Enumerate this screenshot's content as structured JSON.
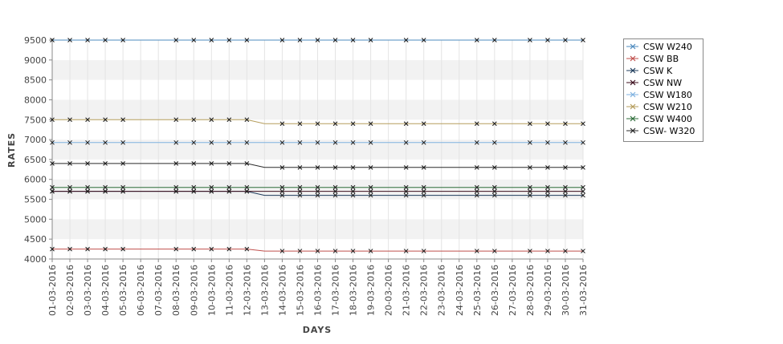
{
  "chart_data": {
    "type": "line",
    "title": "",
    "xlabel": "DAYS",
    "ylabel": "RATES",
    "ylim": [
      4000,
      9500
    ],
    "yticks": [
      4000,
      4500,
      5000,
      5500,
      6000,
      6500,
      7000,
      7500,
      8000,
      8500,
      9000,
      9500
    ],
    "grid": "horizontal alternating bands",
    "legend_position": "right",
    "categories": [
      "01-03-2016",
      "02-03-2016",
      "03-03-2016",
      "04-03-2016",
      "05-03-2016",
      "06-03-2016",
      "07-03-2016",
      "08-03-2016",
      "09-03-2016",
      "10-03-2016",
      "11-03-2016",
      "12-03-2016",
      "13-03-2016",
      "14-03-2016",
      "15-03-2016",
      "16-03-2016",
      "17-03-2016",
      "18-03-2016",
      "19-03-2016",
      "20-03-2016",
      "21-03-2016",
      "22-03-2016",
      "23-03-2016",
      "24-03-2016",
      "25-03-2016",
      "26-03-2016",
      "27-03-2016",
      "28-03-2016",
      "29-03-2016",
      "30-03-2016",
      "31-03-2016"
    ],
    "marker_dates": [
      "01-03-2016",
      "02-03-2016",
      "03-03-2016",
      "04-03-2016",
      "05-03-2016",
      "08-03-2016",
      "09-03-2016",
      "10-03-2016",
      "11-03-2016",
      "12-03-2016",
      "14-03-2016",
      "15-03-2016",
      "16-03-2016",
      "17-03-2016",
      "18-03-2016",
      "19-03-2016",
      "21-03-2016",
      "22-03-2016",
      "25-03-2016",
      "26-03-2016",
      "28-03-2016",
      "29-03-2016",
      "30-03-2016",
      "31-03-2016"
    ],
    "series": [
      {
        "name": "CSW  W240",
        "color": "#4e8bbf",
        "before": 9500,
        "after": 9500
      },
      {
        "name": "CSW BB",
        "color": "#c0504d",
        "before": 4250,
        "after": 4200
      },
      {
        "name": "CSW K",
        "color": "#1f3c5c",
        "before": 5700,
        "after": 5600
      },
      {
        "name": "CSW NW",
        "color": "#3d0f1e",
        "before": 5700,
        "after": 5700
      },
      {
        "name": "CSW W180",
        "color": "#7fb2e0",
        "before": 6925,
        "after": 6925
      },
      {
        "name": "CSW W210",
        "color": "#b59d5c",
        "before": 7500,
        "after": 7400
      },
      {
        "name": "CSW W400",
        "color": "#2e6e3a",
        "before": 5800,
        "after": 5800
      },
      {
        "name": "CSW- W320",
        "color": "#2a2a2a",
        "before": 6400,
        "after": 6300
      }
    ],
    "change_after": "12-03-2016"
  }
}
